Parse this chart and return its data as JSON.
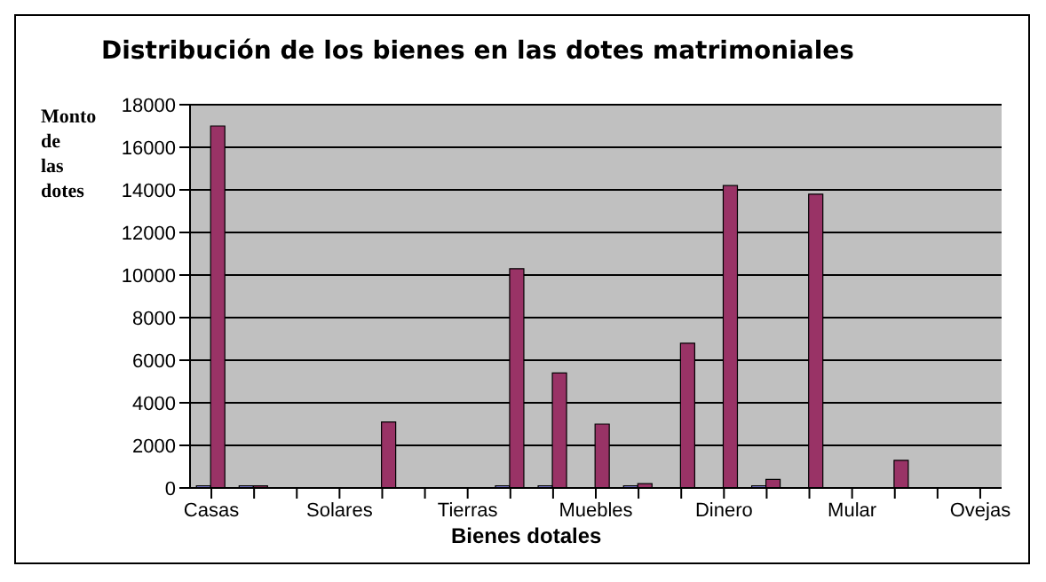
{
  "chart_data": {
    "type": "bar",
    "title": "Distribución de los bienes en las dotes matrimoniales",
    "xlabel": "Bienes dotales",
    "ylabel": "Monto de las dotes",
    "categories": [
      "Casas",
      null,
      null,
      "Solares",
      null,
      null,
      "Tierras",
      null,
      null,
      "Muebles",
      null,
      null,
      "Dinero",
      null,
      null,
      "Mular",
      null,
      null,
      "Ovejas"
    ],
    "series": [
      {
        "color": "#9999ff",
        "values": [
          100,
          100,
          null,
          null,
          null,
          null,
          null,
          100,
          100,
          null,
          100,
          null,
          null,
          100,
          null,
          null,
          null,
          null,
          null
        ]
      },
      {
        "color": "#993366",
        "values": [
          17000,
          100,
          0,
          0,
          3100,
          0,
          0,
          10300,
          5400,
          3000,
          200,
          6800,
          14200,
          400,
          13800,
          0,
          1300,
          0,
          0
        ]
      }
    ],
    "ylim": [
      0,
      18000
    ],
    "yticks": [
      0,
      2000,
      4000,
      6000,
      8000,
      10000,
      12000,
      14000,
      16000,
      18000
    ],
    "grid": "y",
    "legend": false
  }
}
